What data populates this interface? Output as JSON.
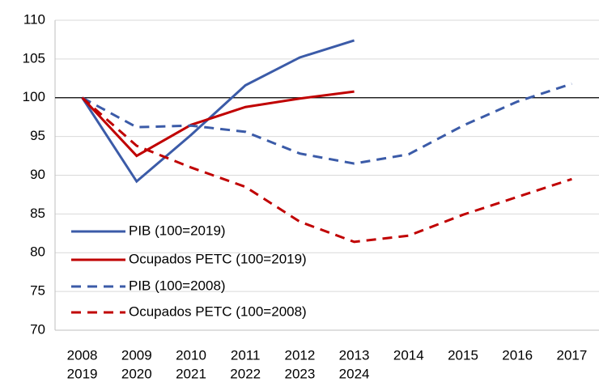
{
  "chart_data": {
    "type": "line",
    "categories": [
      "2008",
      "2009",
      "2010",
      "2011",
      "2012",
      "2013",
      "2014",
      "2015",
      "2016",
      "2017"
    ],
    "categories_secondary": [
      "2019",
      "2020",
      "2021",
      "2022",
      "2023",
      "2024",
      null,
      null,
      null,
      null
    ],
    "series": [
      {
        "name": "PIB (100=2019)",
        "color": "#3b5ba8",
        "dash": false,
        "values": [
          100,
          89.2,
          95.2,
          101.6,
          105.2,
          107.4,
          null,
          null,
          null,
          null
        ]
      },
      {
        "name": "Ocupados PETC (100=2019)",
        "color": "#c00000",
        "dash": false,
        "values": [
          100,
          92.5,
          96.5,
          98.8,
          99.9,
          100.8,
          null,
          null,
          null,
          null
        ]
      },
      {
        "name": "PIB (100=2008)",
        "color": "#3b5ba8",
        "dash": true,
        "values": [
          100,
          96.2,
          96.4,
          95.6,
          92.8,
          91.5,
          92.7,
          96.4,
          99.5,
          101.8
        ]
      },
      {
        "name": "Ocupados PETC (100=2008)",
        "color": "#c00000",
        "dash": true,
        "values": [
          100,
          93.8,
          91,
          88.5,
          84,
          81.4,
          82.2,
          84.9,
          87.2,
          89.5
        ]
      }
    ],
    "ylim": [
      70,
      110
    ],
    "yticks": [
      70,
      75,
      80,
      85,
      90,
      95,
      100,
      105,
      110
    ],
    "grid": true,
    "hline": 100,
    "legend": "lower left"
  }
}
